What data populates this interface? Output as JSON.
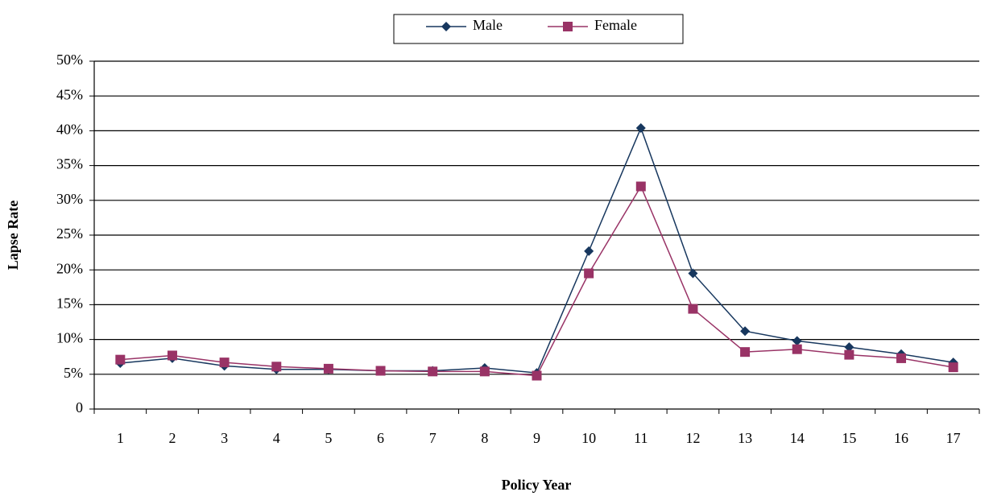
{
  "chart_data": {
    "type": "line",
    "x_label": "Policy Year",
    "y_label": "Lapse Rate",
    "categories": [
      1,
      2,
      3,
      4,
      5,
      6,
      7,
      8,
      9,
      10,
      11,
      12,
      13,
      14,
      15,
      16,
      17
    ],
    "series": [
      {
        "name": "Male",
        "color": "#17375e",
        "marker": "diamond",
        "values": [
          6.6,
          7.3,
          6.2,
          5.7,
          5.7,
          5.5,
          5.5,
          5.9,
          5.2,
          22.7,
          40.4,
          19.5,
          11.2,
          9.8,
          8.9,
          7.9,
          6.7
        ]
      },
      {
        "name": "Female",
        "color": "#993366",
        "marker": "square",
        "values": [
          7.1,
          7.7,
          6.7,
          6.1,
          5.8,
          5.5,
          5.4,
          5.4,
          4.8,
          19.5,
          32.0,
          14.4,
          8.2,
          8.6,
          7.8,
          7.3,
          6.0
        ]
      }
    ],
    "ylim": [
      0,
      50
    ],
    "yticks": [
      0,
      {
        "value": 5,
        "label": "5%"
      },
      {
        "value": 10,
        "label": "10%"
      },
      {
        "value": 15,
        "label": "15%"
      },
      {
        "value": 20,
        "label": "20%"
      },
      {
        "value": 25,
        "label": "25%"
      },
      {
        "value": 30,
        "label": "30%"
      },
      {
        "value": 35,
        "label": "35%"
      },
      {
        "value": 40,
        "label": "40%"
      },
      {
        "value": 45,
        "label": "45%"
      },
      {
        "value": 50,
        "label": "50%"
      }
    ],
    "grid": true,
    "legend": "top"
  }
}
